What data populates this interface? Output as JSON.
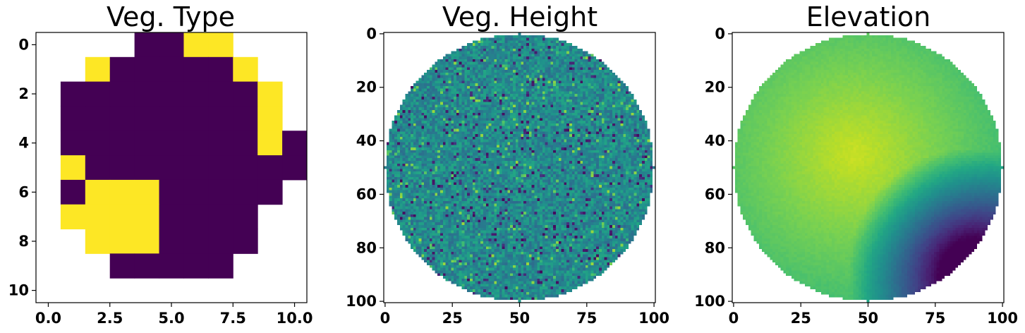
{
  "panels": [
    {
      "title": "Veg. Type",
      "chart_data": {
        "type": "heatmap",
        "title": "Veg. Type",
        "colormap": "viridis",
        "grid": false,
        "xlim": [
          -0.5,
          10.5
        ],
        "ylim": [
          10.5,
          -0.5
        ],
        "xticks": [
          0.0,
          2.5,
          5.0,
          7.5,
          10.0
        ],
        "xtick_labels": [
          "0.0",
          "2.5",
          "5.0",
          "7.5",
          "10.0"
        ],
        "yticks": [
          0,
          2,
          4,
          6,
          8,
          10
        ],
        "ytick_labels": [
          "0",
          "2",
          "4",
          "6",
          "8",
          "10"
        ],
        "legend": "none",
        "note_values": "null = no data (white); 0 = dark purple; 1 = yellow",
        "values": [
          [
            null,
            null,
            null,
            null,
            0,
            0,
            1,
            1,
            null,
            null,
            null
          ],
          [
            null,
            null,
            1,
            0,
            0,
            0,
            0,
            0,
            1,
            null,
            null
          ],
          [
            null,
            0,
            0,
            0,
            0,
            0,
            0,
            0,
            0,
            1,
            null
          ],
          [
            null,
            0,
            0,
            0,
            0,
            0,
            0,
            0,
            0,
            1,
            null
          ],
          [
            null,
            0,
            0,
            0,
            0,
            0,
            0,
            0,
            0,
            1,
            0
          ],
          [
            null,
            1,
            0,
            0,
            0,
            0,
            0,
            0,
            0,
            0,
            0
          ],
          [
            null,
            0,
            1,
            1,
            1,
            0,
            0,
            0,
            0,
            0,
            null
          ],
          [
            null,
            1,
            1,
            1,
            1,
            0,
            0,
            0,
            0,
            null,
            null
          ],
          [
            null,
            null,
            1,
            1,
            1,
            0,
            0,
            0,
            0,
            null,
            null
          ],
          [
            null,
            null,
            null,
            0,
            0,
            0,
            0,
            0,
            null,
            null,
            null
          ],
          [
            null,
            null,
            null,
            null,
            null,
            null,
            null,
            null,
            null,
            null,
            null
          ]
        ]
      }
    },
    {
      "title": "Veg. Height",
      "chart_data": {
        "type": "heatmap",
        "title": "Veg. Height",
        "colormap": "viridis",
        "grid": false,
        "xlim": [
          -0.5,
          100.5
        ],
        "ylim": [
          100.5,
          -0.5
        ],
        "xticks": [
          0,
          25,
          50,
          75,
          100
        ],
        "xtick_labels": [
          "0",
          "25",
          "50",
          "75",
          "100"
        ],
        "yticks": [
          0,
          20,
          40,
          60,
          80,
          100
        ],
        "ytick_labels": [
          "0",
          "20",
          "40",
          "60",
          "80",
          "100"
        ],
        "legend": "none",
        "mask": {
          "shape": "circle",
          "center": [
            50,
            50
          ],
          "radius": 50
        },
        "field_description": "101x101 grid, noisy values mostly mid-range (teal/green), scattered low (dark purple) and high (light green) cells",
        "value_range": [
          0,
          1
        ],
        "typical_value": 0.5
      }
    },
    {
      "title": "Elevation",
      "chart_data": {
        "type": "heatmap",
        "title": "Elevation",
        "colormap": "viridis",
        "grid": false,
        "xlim": [
          -0.5,
          100.5
        ],
        "ylim": [
          100.5,
          -0.5
        ],
        "xticks": [
          0,
          25,
          50,
          75,
          100
        ],
        "xtick_labels": [
          "0",
          "25",
          "50",
          "75",
          "100"
        ],
        "yticks": [
          0,
          20,
          40,
          60,
          80,
          100
        ],
        "ytick_labels": [
          "0",
          "20",
          "40",
          "60",
          "80",
          "100"
        ],
        "legend": "none",
        "mask": {
          "shape": "circle",
          "center": [
            50,
            50
          ],
          "radius": 50
        },
        "field_description": "smooth surface: maximum near (x=45, y=45), decreasing toward the lower-right, minimum near (x=88, y=88)",
        "peak_location": [
          45,
          45
        ],
        "low_location": [
          88,
          88
        ],
        "value_range": [
          0,
          1
        ]
      }
    }
  ]
}
